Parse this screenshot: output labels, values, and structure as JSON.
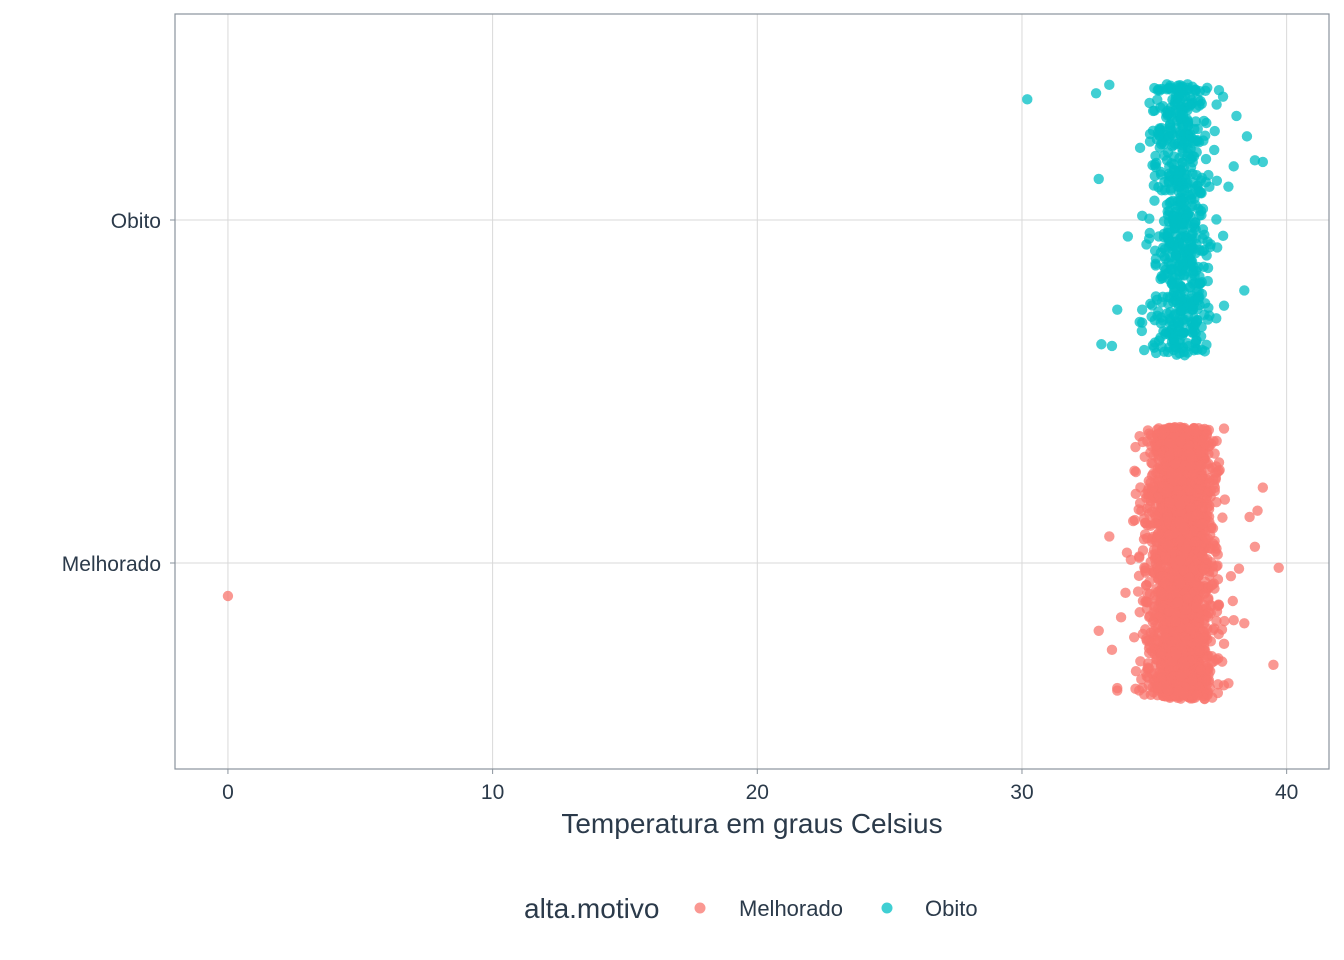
{
  "chart_data": {
    "type": "scatter",
    "title": "",
    "xlabel": "Temperatura em graus Celsius",
    "ylabel": "",
    "xlim": [
      -2,
      41.6
    ],
    "x_ticks": [
      0,
      10,
      20,
      30,
      40
    ],
    "categories": [
      "Melhorado",
      "Obito"
    ],
    "jitter": "vertical, about ±0.4 category units around each category",
    "grid": true,
    "legend": {
      "title": "alta.motivo",
      "position": "bottom",
      "entries": [
        "Melhorado",
        "Obito"
      ]
    },
    "colors": {
      "Melhorado": "#F8766D",
      "Obito": "#00BFC4"
    },
    "series": [
      {
        "name": "Melhorado",
        "approx_count": 2600,
        "x_mean": 36.0,
        "x_sd": 0.6,
        "core_x_range": [
          35.0,
          37.0
        ],
        "outliers_x": [
          0,
          32.9,
          33.3,
          33.4,
          33.6,
          34.3,
          37.8,
          38.0,
          38.2,
          38.4,
          38.6,
          38.8,
          38.9,
          39.1,
          39.5,
          39.7
        ]
      },
      {
        "name": "Obito",
        "approx_count": 620,
        "x_mean": 36.0,
        "x_sd": 0.55,
        "core_x_range": [
          35.0,
          37.0
        ],
        "outliers_x": [
          30.2,
          32.8,
          32.9,
          33.0,
          33.3,
          33.4,
          33.6,
          34.0,
          37.8,
          38.0,
          38.4,
          38.5,
          38.8,
          39.1
        ]
      }
    ]
  }
}
